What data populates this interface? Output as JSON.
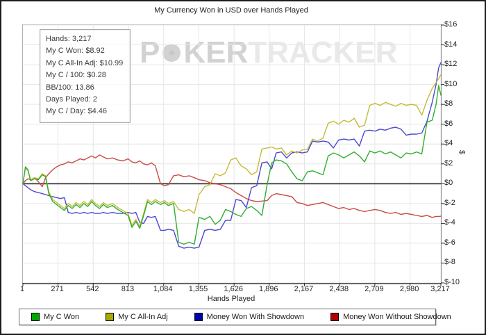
{
  "window": {
    "title": "My Currency Won in USD over Hands Played"
  },
  "stats_box": {
    "lines": [
      "Hands: 3,217",
      "My C Won: $8.92",
      "My C All-In Adj: $10.99",
      "My C / 100: $0.28",
      "BB/100: 13.86",
      "Days Played: 2",
      "My C / Day: $4.46"
    ]
  },
  "watermark": {
    "part1": "P",
    "chip_glyph": "♠",
    "part2": "KER",
    "part3": "TRACKER"
  },
  "chart_data": {
    "type": "line",
    "title": "My Currency Won in USD over Hands Played",
    "xlabel": "Hands Played",
    "ylabel": "$",
    "xlim": [
      1,
      3217
    ],
    "ylim": [
      -10,
      16
    ],
    "grid": true,
    "legend_position": "bottom",
    "zero_line": true,
    "x_ticks": [
      {
        "value": 1,
        "label": "1"
      },
      {
        "value": 271,
        "label": "271"
      },
      {
        "value": 542,
        "label": "542"
      },
      {
        "value": 813,
        "label": "813"
      },
      {
        "value": 1084,
        "label": "1,084"
      },
      {
        "value": 1355,
        "label": "1,355"
      },
      {
        "value": 1626,
        "label": "1,626"
      },
      {
        "value": 1896,
        "label": "1,896"
      },
      {
        "value": 2167,
        "label": "2,167"
      },
      {
        "value": 2438,
        "label": "2,438"
      },
      {
        "value": 2709,
        "label": "2,709"
      },
      {
        "value": 2980,
        "label": "2,980"
      },
      {
        "value": 3217,
        "label": "3,217"
      }
    ],
    "y_ticks": [
      {
        "value": -10,
        "label": "$-10"
      },
      {
        "value": -8,
        "label": "$-8"
      },
      {
        "value": -6,
        "label": "$-6"
      },
      {
        "value": -4,
        "label": "$-4"
      },
      {
        "value": -2,
        "label": "$-2"
      },
      {
        "value": 0,
        "label": "$0"
      },
      {
        "value": 2,
        "label": "$2"
      },
      {
        "value": 4,
        "label": "$4"
      },
      {
        "value": 6,
        "label": "$6"
      },
      {
        "value": 8,
        "label": "$8"
      },
      {
        "value": 10,
        "label": "$10"
      },
      {
        "value": 12,
        "label": "$12"
      },
      {
        "value": 14,
        "label": "$14"
      },
      {
        "value": 16,
        "label": "$16"
      }
    ],
    "x": [
      1,
      20,
      40,
      60,
      90,
      120,
      150,
      175,
      200,
      230,
      260,
      290,
      320,
      350,
      380,
      410,
      440,
      470,
      500,
      530,
      560,
      590,
      620,
      650,
      690,
      730,
      770,
      810,
      840,
      870,
      900,
      930,
      960,
      990,
      1020,
      1060,
      1090,
      1120,
      1160,
      1200,
      1240,
      1280,
      1320,
      1356,
      1400,
      1440,
      1480,
      1520,
      1560,
      1600,
      1640,
      1680,
      1720,
      1760,
      1800,
      1840,
      1880,
      1915,
      1950,
      1990,
      2030,
      2070,
      2110,
      2150,
      2190,
      2230,
      2270,
      2310,
      2350,
      2390,
      2430,
      2470,
      2510,
      2550,
      2590,
      2630,
      2670,
      2710,
      2750,
      2790,
      2830,
      2870,
      2910,
      2950,
      2990,
      3030,
      3070,
      3110,
      3150,
      3180,
      3200,
      3217
    ],
    "series": [
      {
        "name": "My C Won",
        "color": "#2fae2f",
        "swatch": "#00a800",
        "final_value": 8.92,
        "values": [
          0.0,
          1.7,
          1.4,
          0.3,
          0.5,
          0.4,
          0.9,
          0.7,
          -1.0,
          -1.8,
          -2.1,
          -2.4,
          -2.7,
          -2.2,
          -2.5,
          -2.1,
          -2.4,
          -2.0,
          -2.3,
          -1.8,
          -2.2,
          -2.5,
          -2.1,
          -2.4,
          -2.2,
          -2.6,
          -2.9,
          -3.2,
          -4.4,
          -3.8,
          -4.5,
          -3.2,
          -1.8,
          -2.1,
          -1.8,
          -2.1,
          -1.9,
          -2.2,
          -2.0,
          -5.9,
          -6.1,
          -5.9,
          -6.1,
          -3.4,
          -3.6,
          -3.3,
          -4.1,
          -3.7,
          -2.6,
          -2.8,
          -3.1,
          -3.3,
          -2.5,
          -2.3,
          -2.7,
          -3.2,
          -0.1,
          2.1,
          2.4,
          2.3,
          2.0,
          1.2,
          0.5,
          0.3,
          1.2,
          1.3,
          1.1,
          0.9,
          2.8,
          3.1,
          2.9,
          2.6,
          2.9,
          3.2,
          2.8,
          2.2,
          3.3,
          3.1,
          3.3,
          3.0,
          3.2,
          2.9,
          2.6,
          3.1,
          3.0,
          3.2,
          3.0,
          6.2,
          6.4,
          8.0,
          9.9,
          8.92
        ]
      },
      {
        "name": "My C All-In Adj",
        "color": "#c5bb35",
        "swatch": "#a8a800",
        "final_value": 10.99,
        "values": [
          0.0,
          1.6,
          1.3,
          0.4,
          0.6,
          0.5,
          1.0,
          0.8,
          -0.8,
          -1.6,
          -1.9,
          -2.2,
          -2.5,
          -2.0,
          -2.3,
          -1.9,
          -2.2,
          -1.8,
          -2.1,
          -1.6,
          -2.0,
          -2.3,
          -1.9,
          -2.2,
          -2.0,
          -2.4,
          -2.7,
          -3.0,
          -4.2,
          -3.6,
          -4.3,
          -3.0,
          -1.6,
          -1.9,
          -1.6,
          -1.9,
          -1.7,
          -2.0,
          -1.8,
          -2.6,
          -2.8,
          -2.6,
          -3.0,
          -1.1,
          -0.3,
          -0.1,
          1.0,
          0.8,
          1.1,
          2.4,
          2.6,
          1.8,
          1.5,
          0.9,
          1.2,
          3.5,
          3.6,
          3.7,
          3.5,
          3.6,
          2.9,
          3.3,
          3.1,
          3.4,
          3.5,
          4.5,
          4.3,
          4.6,
          6.1,
          6.3,
          6.0,
          6.4,
          6.2,
          6.6,
          5.7,
          5.9,
          7.9,
          8.1,
          7.9,
          8.2,
          8.0,
          7.8,
          8.1,
          7.9,
          8.0,
          7.9,
          6.9,
          8.4,
          9.6,
          10.2,
          10.6,
          10.99
        ]
      },
      {
        "name": "Money Won With Showdown",
        "color": "#4a49d0",
        "swatch": "#0000b0",
        "final_value": 12.2,
        "values": [
          0.0,
          -0.2,
          -0.4,
          -0.6,
          -0.8,
          -0.9,
          -1.0,
          -1.1,
          -1.2,
          -1.3,
          -1.4,
          -1.5,
          -1.4,
          -2.9,
          -3.0,
          -2.9,
          -3.0,
          -2.9,
          -3.0,
          -2.9,
          -3.0,
          -3.0,
          -2.9,
          -3.0,
          -2.9,
          -3.0,
          -3.0,
          -2.9,
          -3.0,
          -2.9,
          -3.9,
          -4.0,
          -3.3,
          -3.4,
          -3.3,
          -4.7,
          -4.7,
          -4.6,
          -4.7,
          -6.3,
          -6.5,
          -6.4,
          -6.5,
          -6.4,
          -4.7,
          -4.6,
          -4.7,
          -4.6,
          -3.7,
          -3.7,
          -1.6,
          -1.7,
          -2.4,
          -0.4,
          -0.2,
          2.1,
          2.2,
          1.5,
          3.1,
          3.2,
          2.6,
          3.1,
          3.2,
          3.1,
          3.2,
          4.3,
          4.2,
          4.3,
          4.2,
          3.6,
          4.4,
          4.5,
          4.4,
          4.5,
          3.8,
          5.3,
          5.4,
          5.3,
          5.5,
          5.4,
          5.6,
          5.7,
          5.5,
          4.9,
          5.0,
          5.0,
          5.1,
          6.3,
          8.2,
          10.0,
          11.7,
          12.2
        ]
      },
      {
        "name": "Money Won Without Showdown",
        "color": "#cb4a43",
        "swatch": "#b00000",
        "final_value": -3.28,
        "values": [
          0.0,
          0.3,
          0.5,
          0.4,
          0.6,
          0.2,
          -0.3,
          0.6,
          1.0,
          1.4,
          1.7,
          1.9,
          2.0,
          2.2,
          2.1,
          2.3,
          2.5,
          2.4,
          2.6,
          2.8,
          2.6,
          2.9,
          2.7,
          2.5,
          2.6,
          2.4,
          2.3,
          2.5,
          2.2,
          2.1,
          2.3,
          2.0,
          1.9,
          2.1,
          1.8,
          0.0,
          -0.2,
          -0.1,
          0.8,
          0.9,
          0.7,
          0.8,
          0.6,
          0.4,
          0.3,
          0.1,
          0.0,
          -0.1,
          -0.3,
          -0.5,
          -0.9,
          -1.2,
          -1.5,
          -1.7,
          -1.8,
          -1.75,
          -1.7,
          -1.2,
          -1.0,
          -1.1,
          -1.2,
          -1.3,
          -1.9,
          -2.0,
          -2.2,
          -2.1,
          -2.0,
          -1.9,
          -2.1,
          -2.3,
          -2.5,
          -2.4,
          -2.6,
          -2.5,
          -2.7,
          -2.8,
          -2.7,
          -2.6,
          -2.7,
          -2.9,
          -3.0,
          -2.9,
          -3.1,
          -3.0,
          -3.1,
          -3.2,
          -3.3,
          -3.2,
          -3.4,
          -3.3,
          -3.3,
          -3.28
        ]
      }
    ]
  }
}
